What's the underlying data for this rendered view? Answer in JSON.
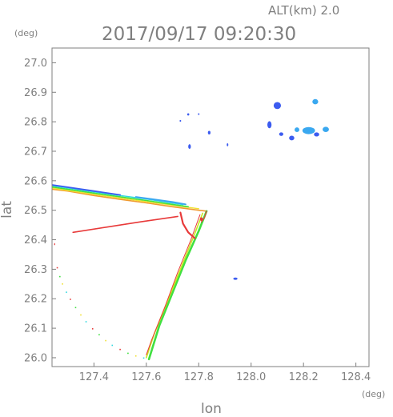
{
  "header": {
    "altitude_label": "ALT(km)  2.0",
    "timestamp": "2017/09/17 09:20:30"
  },
  "chart_data": {
    "type": "scatter",
    "title": "2017/09/17 09:20:30",
    "subtitle": "ALT(km)  2.0",
    "xlabel": "lon",
    "ylabel": "lat",
    "x_unit": "(deg)",
    "y_unit": "(deg)",
    "xlim": [
      127.24,
      128.45
    ],
    "ylim": [
      25.97,
      27.05
    ],
    "x_ticks": [
      127.4,
      127.6,
      127.8,
      128.0,
      128.2,
      128.4
    ],
    "y_ticks": [
      26.0,
      26.1,
      26.2,
      26.3,
      26.4,
      26.5,
      26.6,
      26.7,
      26.8,
      26.9,
      27.0
    ],
    "x_tick_labels": [
      "127.4",
      "127.6",
      "127.8",
      "128.0",
      "128.2",
      "128.4"
    ],
    "y_tick_labels": [
      "26.0",
      "26.1",
      "26.2",
      "26.3",
      "26.4",
      "26.5",
      "26.6",
      "26.7",
      "26.8",
      "26.9",
      "27.0"
    ],
    "grid": false,
    "colors": {
      "echo_blue": "#3c5cf0",
      "echo_light_blue": "#3aa8f0",
      "echo_cyan": "#30d8e0",
      "echo_green": "#40e040",
      "echo_yellow_green": "#c8e820",
      "echo_yellow": "#f0e030",
      "echo_orange": "#f09a30",
      "echo_red": "#e83a3a",
      "axis": "#7f7f7f"
    },
    "series": [
      {
        "points": [
          {
            "lon": 127.24,
            "lat": 26.571
          },
          {
            "lon": 127.3,
            "lat": 26.565
          },
          {
            "lon": 127.4,
            "lat": 26.55
          },
          {
            "lon": 127.5,
            "lat": 26.537
          },
          {
            "lon": 127.6,
            "lat": 26.525
          },
          {
            "lon": 127.7,
            "lat": 26.512
          },
          {
            "lon": 127.8,
            "lat": 26.5
          },
          {
            "lon": 127.83,
            "lat": 26.497
          }
        ],
        "color": "#f09a30",
        "width": 1.6
      },
      {
        "points": [
          {
            "lon": 127.24,
            "lat": 26.575
          },
          {
            "lon": 127.4,
            "lat": 26.554
          },
          {
            "lon": 127.6,
            "lat": 26.529
          },
          {
            "lon": 127.8,
            "lat": 26.505
          }
        ],
        "color": "#f0e030",
        "width": 1.4
      },
      {
        "points": [
          {
            "lon": 127.24,
            "lat": 26.579
          },
          {
            "lon": 127.4,
            "lat": 26.558
          },
          {
            "lon": 127.6,
            "lat": 26.533
          },
          {
            "lon": 127.76,
            "lat": 26.512
          }
        ],
        "color": "#40e040",
        "width": 1.6
      },
      {
        "points": [
          {
            "lon": 127.24,
            "lat": 26.583
          },
          {
            "lon": 127.4,
            "lat": 26.562
          },
          {
            "lon": 127.6,
            "lat": 26.538
          },
          {
            "lon": 127.74,
            "lat": 26.519
          }
        ],
        "color": "#30d8e0",
        "width": 1.4
      },
      {
        "points": [
          {
            "lon": 127.24,
            "lat": 26.586
          },
          {
            "lon": 127.4,
            "lat": 26.565
          },
          {
            "lon": 127.5,
            "lat": 26.552
          }
        ],
        "color": "#3c5cf0",
        "width": 1.8
      },
      {
        "points": [
          {
            "lon": 127.56,
            "lat": 26.545
          },
          {
            "lon": 127.62,
            "lat": 26.538
          },
          {
            "lon": 127.7,
            "lat": 26.528
          },
          {
            "lon": 127.75,
            "lat": 26.52
          }
        ],
        "color": "#3aa8f0",
        "width": 2.0
      },
      {
        "points": [
          {
            "lon": 127.83,
            "lat": 26.497
          },
          {
            "lon": 127.8,
            "lat": 26.43
          },
          {
            "lon": 127.75,
            "lat": 26.33
          },
          {
            "lon": 127.7,
            "lat": 26.22
          },
          {
            "lon": 127.65,
            "lat": 26.11
          },
          {
            "lon": 127.61,
            "lat": 25.995
          }
        ],
        "color": "#40e040",
        "width": 2.6
      },
      {
        "points": [
          {
            "lon": 127.815,
            "lat": 26.49
          },
          {
            "lon": 127.78,
            "lat": 26.41
          },
          {
            "lon": 127.73,
            "lat": 26.3
          },
          {
            "lon": 127.68,
            "lat": 26.19
          },
          {
            "lon": 127.63,
            "lat": 26.08
          },
          {
            "lon": 127.6,
            "lat": 26.0
          }
        ],
        "color": "#c8e820",
        "width": 1.6
      },
      {
        "points": [
          {
            "lon": 127.805,
            "lat": 26.485
          },
          {
            "lon": 127.77,
            "lat": 26.4
          },
          {
            "lon": 127.72,
            "lat": 26.29
          },
          {
            "lon": 127.67,
            "lat": 26.17
          },
          {
            "lon": 127.62,
            "lat": 26.06
          },
          {
            "lon": 127.6,
            "lat": 26.01
          }
        ],
        "color": "#e83a3a",
        "width": 1.0
      },
      {
        "points": [
          {
            "lon": 127.83,
            "lat": 26.497
          },
          {
            "lon": 127.822,
            "lat": 26.475
          },
          {
            "lon": 127.81,
            "lat": 26.46
          }
        ],
        "color": "#e83a3a",
        "width": 1.2
      },
      {
        "points": [
          {
            "lon": 127.32,
            "lat": 26.425
          },
          {
            "lon": 127.45,
            "lat": 26.443
          },
          {
            "lon": 127.58,
            "lat": 26.461
          },
          {
            "lon": 127.72,
            "lat": 26.479
          }
        ],
        "color": "#e83a3a",
        "width": 1.6
      },
      {
        "points": [
          {
            "lon": 127.73,
            "lat": 26.492
          },
          {
            "lon": 127.74,
            "lat": 26.455
          },
          {
            "lon": 127.76,
            "lat": 26.425
          },
          {
            "lon": 127.785,
            "lat": 26.405
          }
        ],
        "color": "#e83a3a",
        "width": 2.2
      }
    ],
    "points": [
      {
        "lon": 128.1,
        "lat": 26.855,
        "rx": 0.014,
        "ry": 0.012,
        "color": "#3c5cf0"
      },
      {
        "lon": 128.245,
        "lat": 26.868,
        "rx": 0.011,
        "ry": 0.009,
        "color": "#3aa8f0"
      },
      {
        "lon": 128.07,
        "lat": 26.79,
        "rx": 0.008,
        "ry": 0.012,
        "color": "#3c5cf0"
      },
      {
        "lon": 128.22,
        "lat": 26.77,
        "rx": 0.024,
        "ry": 0.012,
        "color": "#3aa8f0"
      },
      {
        "lon": 128.175,
        "lat": 26.773,
        "rx": 0.009,
        "ry": 0.008,
        "color": "#3aa8f0"
      },
      {
        "lon": 128.285,
        "lat": 26.774,
        "rx": 0.012,
        "ry": 0.009,
        "color": "#3aa8f0"
      },
      {
        "lon": 128.115,
        "lat": 26.758,
        "rx": 0.008,
        "ry": 0.006,
        "color": "#3c5cf0"
      },
      {
        "lon": 128.155,
        "lat": 26.745,
        "rx": 0.01,
        "ry": 0.008,
        "color": "#3c5cf0"
      },
      {
        "lon": 128.25,
        "lat": 26.757,
        "rx": 0.01,
        "ry": 0.007,
        "color": "#3c5cf0"
      },
      {
        "lon": 127.94,
        "lat": 26.268,
        "rx": 0.008,
        "ry": 0.004,
        "color": "#3c5cf0"
      },
      {
        "lon": 127.76,
        "lat": 26.825,
        "rx": 0.004,
        "ry": 0.004,
        "color": "#3c5cf0"
      },
      {
        "lon": 127.73,
        "lat": 26.803,
        "rx": 0.003,
        "ry": 0.003,
        "color": "#3c5cf0"
      },
      {
        "lon": 127.8,
        "lat": 26.826,
        "rx": 0.003,
        "ry": 0.003,
        "color": "#3c5cf0"
      },
      {
        "lon": 127.84,
        "lat": 26.763,
        "rx": 0.005,
        "ry": 0.006,
        "color": "#3c5cf0"
      },
      {
        "lon": 127.765,
        "lat": 26.716,
        "rx": 0.005,
        "ry": 0.008,
        "color": "#3c5cf0"
      },
      {
        "lon": 127.91,
        "lat": 26.722,
        "rx": 0.003,
        "ry": 0.005,
        "color": "#3c5cf0"
      },
      {
        "lon": 127.25,
        "lat": 26.385,
        "rx": 0.002,
        "ry": 0.004,
        "color": "#e83a3a"
      },
      {
        "lon": 127.81,
        "lat": 26.47,
        "rx": 0.005,
        "ry": 0.006,
        "color": "#e83a3a"
      }
    ],
    "arc_points": [
      {
        "lon": 127.26,
        "lat": 26.305
      },
      {
        "lon": 127.27,
        "lat": 26.275
      },
      {
        "lon": 127.28,
        "lat": 26.25
      },
      {
        "lon": 127.295,
        "lat": 26.222
      },
      {
        "lon": 127.31,
        "lat": 26.198
      },
      {
        "lon": 127.33,
        "lat": 26.17
      },
      {
        "lon": 127.35,
        "lat": 26.145
      },
      {
        "lon": 127.37,
        "lat": 26.122
      },
      {
        "lon": 127.395,
        "lat": 26.098
      },
      {
        "lon": 127.42,
        "lat": 26.078
      },
      {
        "lon": 127.445,
        "lat": 26.058
      },
      {
        "lon": 127.47,
        "lat": 26.042
      },
      {
        "lon": 127.5,
        "lat": 26.028
      },
      {
        "lon": 127.53,
        "lat": 26.015
      },
      {
        "lon": 127.56,
        "lat": 26.006
      },
      {
        "lon": 127.59,
        "lat": 25.999
      }
    ]
  }
}
